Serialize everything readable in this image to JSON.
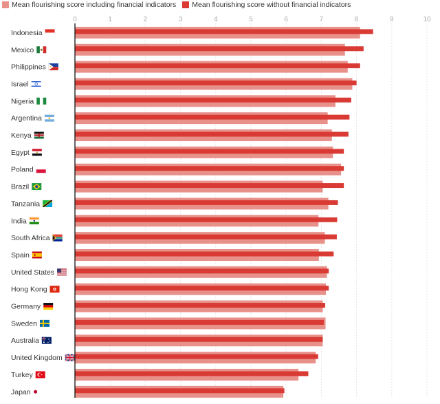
{
  "legend": {
    "incl_label": "Mean flourishing score including financial indicators",
    "excl_label": "Mean flourishing score without financial indicators"
  },
  "colors": {
    "incl": "#e8918b",
    "excl": "#d93a34",
    "axis": "#222222",
    "grid": "#e6e6e6",
    "tick_text": "#aaaaaa"
  },
  "chart_data": {
    "type": "bar",
    "orientation": "horizontal",
    "title": "",
    "xlabel": "",
    "ylabel": "",
    "xlim": [
      0,
      10
    ],
    "xticks": [
      "0",
      "1",
      "2",
      "3",
      "4",
      "5",
      "6",
      "7",
      "8",
      "9",
      "10"
    ],
    "grid": true,
    "legend_position": "top-left",
    "categories": [
      "Indonesia",
      "Mexico",
      "Philippines",
      "Israel",
      "Nigeria",
      "Argentina",
      "Kenya",
      "Egypt",
      "Poland",
      "Brazil",
      "Tanzania",
      "India",
      "South Africa",
      "Spain",
      "United States",
      "Hong Kong",
      "Germany",
      "Sweden",
      "Australia",
      "United Kingdom",
      "Turkey",
      "Japan"
    ],
    "flags": [
      "indonesia-flag-icon",
      "mexico-flag-icon",
      "philippines-flag-icon",
      "israel-flag-icon",
      "nigeria-flag-icon",
      "argentina-flag-icon",
      "kenya-flag-icon",
      "egypt-flag-icon",
      "poland-flag-icon",
      "brazil-flag-icon",
      "tanzania-flag-icon",
      "india-flag-icon",
      "south-africa-flag-icon",
      "spain-flag-icon",
      "united-states-flag-icon",
      "hong-kong-flag-icon",
      "germany-flag-icon",
      "sweden-flag-icon",
      "australia-flag-icon",
      "united-kingdom-flag-icon",
      "turkey-flag-icon",
      "japan-flag-icon"
    ],
    "series": [
      {
        "name": "Mean flourishing score including financial indicators",
        "values": [
          8.1,
          7.67,
          7.75,
          7.88,
          7.4,
          7.18,
          7.3,
          7.33,
          7.56,
          7.04,
          7.2,
          6.92,
          7.1,
          6.93,
          7.16,
          7.13,
          7.04,
          7.12,
          7.04,
          6.84,
          6.35,
          5.92
        ]
      },
      {
        "name": "Mean flourishing score without financial indicators",
        "values": [
          8.47,
          8.2,
          8.1,
          8.0,
          7.85,
          7.8,
          7.77,
          7.64,
          7.64,
          7.64,
          7.47,
          7.45,
          7.44,
          7.35,
          7.21,
          7.21,
          7.11,
          7.07,
          7.04,
          6.91,
          6.63,
          5.95
        ]
      }
    ]
  }
}
